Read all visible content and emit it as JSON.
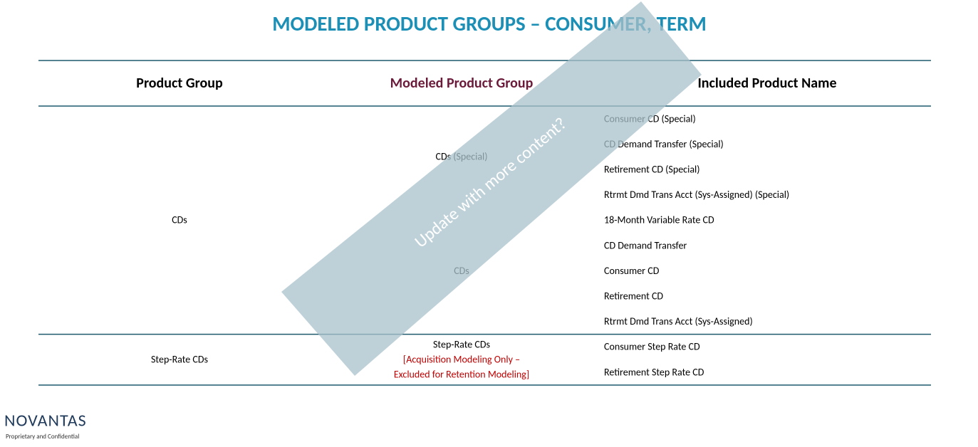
{
  "title": "MODELED PRODUCT GROUPS – CONSUMER, TERM",
  "table": {
    "headers": [
      "Product Group",
      "Modeled Product Group",
      "Included Product Name"
    ],
    "groups": [
      {
        "product_group": "CDs",
        "modeled": [
          {
            "name": "CDs (Special)",
            "products": [
              "Consumer CD (Special)",
              "CD Demand Transfer (Special)",
              "Retirement CD (Special)",
              "Rtrmt Dmd Trans Acct (Sys-Assigned) (Special)"
            ]
          },
          {
            "name": "CDs",
            "products": [
              "18-Month Variable Rate CD",
              "CD Demand Transfer",
              "Consumer CD",
              "Retirement CD",
              "Rtrmt Dmd Trans Acct (Sys-Assigned)"
            ]
          }
        ]
      },
      {
        "product_group": "Step-Rate CDs",
        "modeled": [
          {
            "name": "Step-Rate CDs",
            "note": [
              "[Acquisition Modeling Only –",
              "Excluded for Retention Modeling]"
            ],
            "products": [
              "Consumer Step Rate CD",
              "Retirement Step Rate CD"
            ]
          }
        ]
      }
    ]
  },
  "watermark": "Update with more content?",
  "footer": {
    "logo": "NOVANTAS",
    "tagline": "Proprietary and Confidential"
  }
}
